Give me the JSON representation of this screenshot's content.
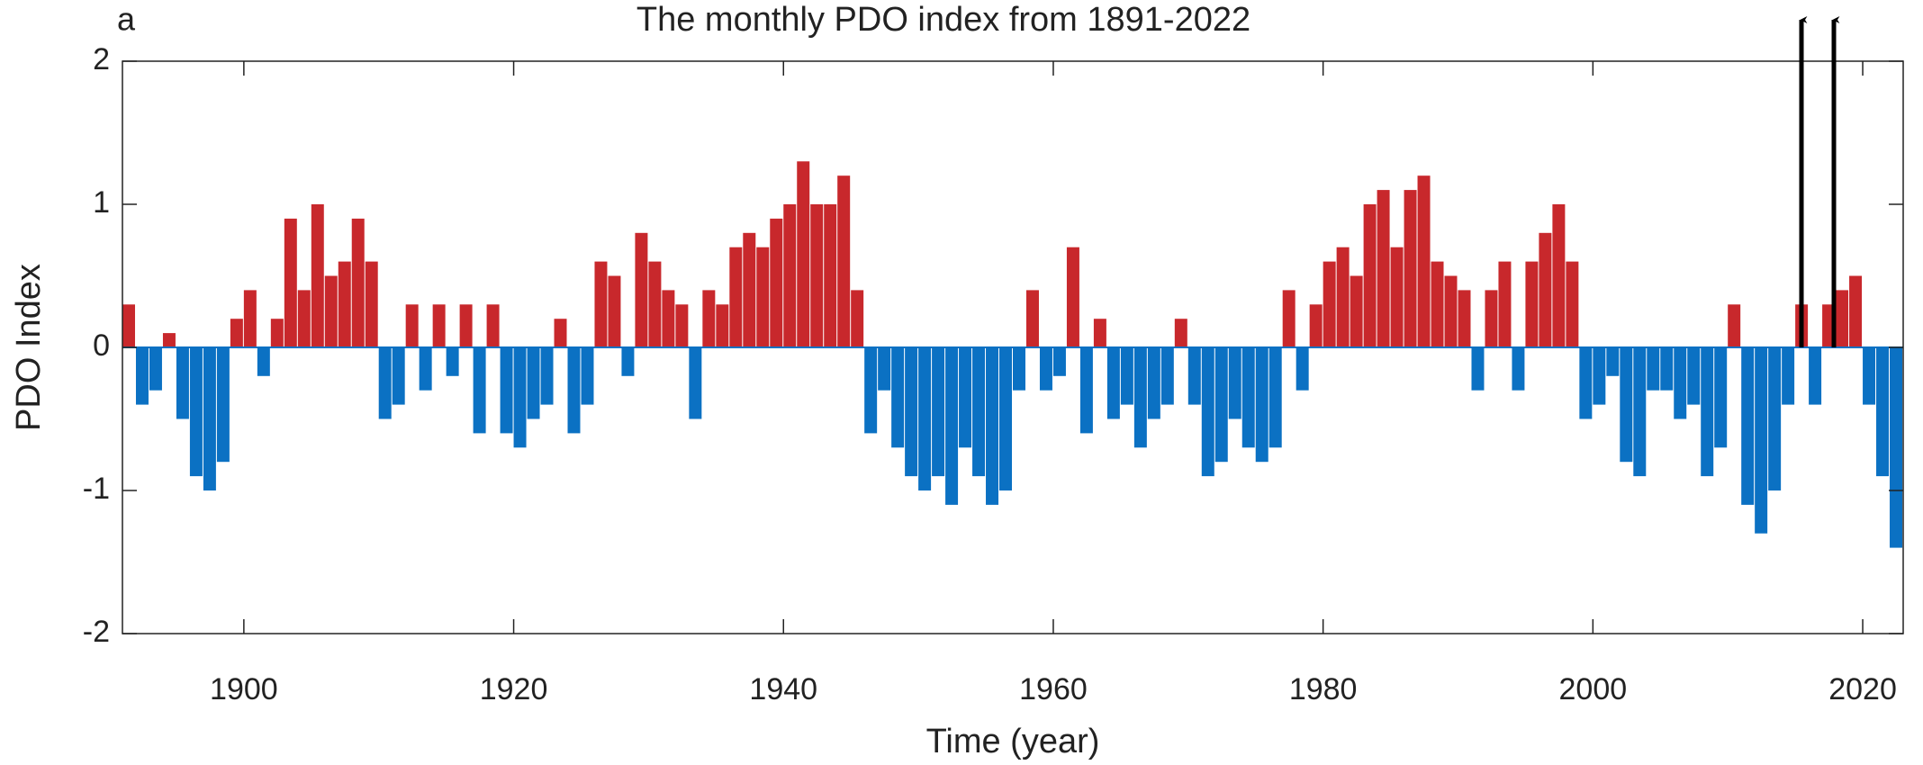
{
  "chart_data": {
    "type": "bar",
    "panel_label": "a",
    "title": "The monthly PDO index from 1891-2022",
    "x_label": "Time (year)",
    "y_label": "PDO Index",
    "xlim": [
      1891,
      2023
    ],
    "ylim": [
      -2,
      2
    ],
    "xticks": [
      1900,
      1920,
      1940,
      1960,
      1980,
      2000,
      2020
    ],
    "yticks": [
      -2,
      -1,
      0,
      1,
      2
    ],
    "positive_color": "#c8282c",
    "negative_color": "#0b71c3",
    "x": [
      1891,
      1892,
      1893,
      1894,
      1895,
      1896,
      1897,
      1898,
      1899,
      1900,
      1901,
      1902,
      1903,
      1904,
      1905,
      1906,
      1907,
      1908,
      1909,
      1910,
      1911,
      1912,
      1913,
      1914,
      1915,
      1916,
      1917,
      1918,
      1919,
      1920,
      1921,
      1922,
      1923,
      1924,
      1925,
      1926,
      1927,
      1928,
      1929,
      1930,
      1931,
      1932,
      1933,
      1934,
      1935,
      1936,
      1937,
      1938,
      1939,
      1940,
      1941,
      1942,
      1943,
      1944,
      1945,
      1946,
      1947,
      1948,
      1949,
      1950,
      1951,
      1952,
      1953,
      1954,
      1955,
      1956,
      1957,
      1958,
      1959,
      1960,
      1961,
      1962,
      1963,
      1964,
      1965,
      1966,
      1967,
      1968,
      1969,
      1970,
      1971,
      1972,
      1973,
      1974,
      1975,
      1976,
      1977,
      1978,
      1979,
      1980,
      1981,
      1982,
      1983,
      1984,
      1985,
      1986,
      1987,
      1988,
      1989,
      1990,
      1991,
      1992,
      1993,
      1994,
      1995,
      1996,
      1997,
      1998,
      1999,
      2000,
      2001,
      2002,
      2003,
      2004,
      2005,
      2006,
      2007,
      2008,
      2009,
      2010,
      2011,
      2012,
      2013,
      2014,
      2015,
      2016,
      2017,
      2018,
      2019,
      2020,
      2021,
      2022
    ],
    "values": [
      0.3,
      -0.4,
      -0.3,
      0.1,
      -0.5,
      -0.9,
      -1.0,
      -0.8,
      0.2,
      0.4,
      -0.2,
      0.2,
      0.9,
      0.4,
      1.0,
      0.5,
      0.6,
      0.9,
      0.6,
      -0.5,
      -0.4,
      0.3,
      -0.3,
      0.3,
      -0.2,
      0.3,
      -0.6,
      0.3,
      -0.6,
      -0.7,
      -0.5,
      -0.4,
      0.2,
      -0.6,
      -0.4,
      0.6,
      0.5,
      -0.2,
      0.8,
      0.6,
      0.4,
      0.3,
      -0.5,
      0.4,
      0.3,
      0.7,
      0.8,
      0.7,
      0.9,
      1.0,
      1.3,
      1.0,
      1.0,
      1.2,
      0.4,
      -0.6,
      -0.3,
      -0.7,
      -0.9,
      -1.0,
      -0.9,
      -1.1,
      -0.7,
      -0.9,
      -1.1,
      -1.0,
      -0.3,
      0.4,
      -0.3,
      -0.2,
      0.7,
      -0.6,
      0.2,
      -0.5,
      -0.4,
      -0.7,
      -0.5,
      -0.4,
      0.2,
      -0.4,
      -0.9,
      -0.8,
      -0.5,
      -0.7,
      -0.8,
      -0.7,
      0.4,
      -0.3,
      0.3,
      0.6,
      0.7,
      0.5,
      1.0,
      1.1,
      0.7,
      1.1,
      1.2,
      0.6,
      0.5,
      0.4,
      -0.3,
      0.4,
      0.6,
      -0.3,
      0.6,
      0.8,
      1.0,
      0.6,
      -0.5,
      -0.4,
      -0.2,
      -0.8,
      -0.9,
      -0.3,
      -0.3,
      -0.5,
      -0.4,
      -0.9,
      -0.7,
      0.3,
      -1.1,
      -1.3,
      -1.0,
      -0.4,
      0.3,
      -0.4,
      0.3,
      0.4,
      0.5,
      -0.4,
      -0.9,
      -1.4
    ]
  }
}
